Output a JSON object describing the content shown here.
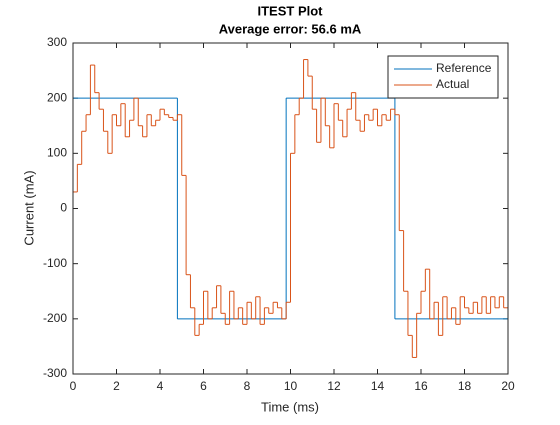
{
  "chart_data": {
    "type": "stairs",
    "title": [
      "ITEST Plot",
      "Average error:  56.6 mA"
    ],
    "xlabel": "Time (ms)",
    "ylabel": "Current (mA)",
    "xlim": [
      0,
      20
    ],
    "ylim": [
      -300,
      300
    ],
    "xticks": [
      0,
      2,
      4,
      6,
      8,
      10,
      12,
      14,
      16,
      18,
      20
    ],
    "yticks": [
      -300,
      -200,
      -100,
      0,
      100,
      200,
      300
    ],
    "legend": "northeast",
    "series": [
      {
        "name": "Reference",
        "color": "#0072BD",
        "x": [
          0,
          4.8,
          9.8,
          14.8
        ],
        "values": [
          200,
          -200,
          200,
          -200
        ]
      },
      {
        "name": "Actual",
        "color": "#D95319",
        "x": [
          0,
          0.2,
          0.4,
          0.6,
          0.8,
          1,
          1.2,
          1.4,
          1.6,
          1.8,
          2,
          2.2,
          2.4,
          2.6,
          2.8,
          3,
          3.2,
          3.4,
          3.6,
          3.8,
          4,
          4.2,
          4.4,
          4.6,
          4.8,
          5,
          5.2,
          5.4,
          5.6,
          5.8,
          6,
          6.2,
          6.4,
          6.6,
          6.8,
          7,
          7.2,
          7.4,
          7.6,
          7.8,
          8,
          8.2,
          8.4,
          8.6,
          8.8,
          9,
          9.2,
          9.4,
          9.6,
          9.8,
          10,
          10.2,
          10.4,
          10.6,
          10.8,
          11,
          11.2,
          11.4,
          11.6,
          11.8,
          12,
          12.2,
          12.4,
          12.6,
          12.8,
          13,
          13.2,
          13.4,
          13.6,
          13.8,
          14,
          14.2,
          14.4,
          14.6,
          14.8,
          15,
          15.2,
          15.4,
          15.6,
          15.8,
          16,
          16.2,
          16.4,
          16.6,
          16.8,
          17,
          17.2,
          17.4,
          17.6,
          17.8,
          18,
          18.2,
          18.4,
          18.6,
          18.8,
          19,
          19.2,
          19.4,
          19.6,
          19.8
        ],
        "values": [
          30,
          80,
          140,
          170,
          260,
          210,
          180,
          140,
          100,
          170,
          150,
          190,
          130,
          160,
          200,
          150,
          130,
          170,
          150,
          160,
          180,
          170,
          165,
          160,
          170,
          60,
          -120,
          -180,
          -230,
          -210,
          -150,
          -200,
          -180,
          -140,
          -190,
          -210,
          -150,
          -200,
          -180,
          -210,
          -170,
          -200,
          -160,
          -210,
          -180,
          -190,
          -170,
          -180,
          -200,
          -170,
          100,
          170,
          200,
          270,
          240,
          180,
          120,
          200,
          150,
          110,
          190,
          160,
          130,
          180,
          210,
          160,
          140,
          170,
          160,
          180,
          150,
          170,
          160,
          180,
          170,
          -40,
          -150,
          -230,
          -270,
          -190,
          -150,
          -110,
          -200,
          -170,
          -230,
          -160,
          -200,
          -180,
          -210,
          -160,
          -180,
          -190,
          -170,
          -190,
          -160,
          -190,
          -160,
          -180,
          -160,
          -180
        ]
      }
    ]
  }
}
